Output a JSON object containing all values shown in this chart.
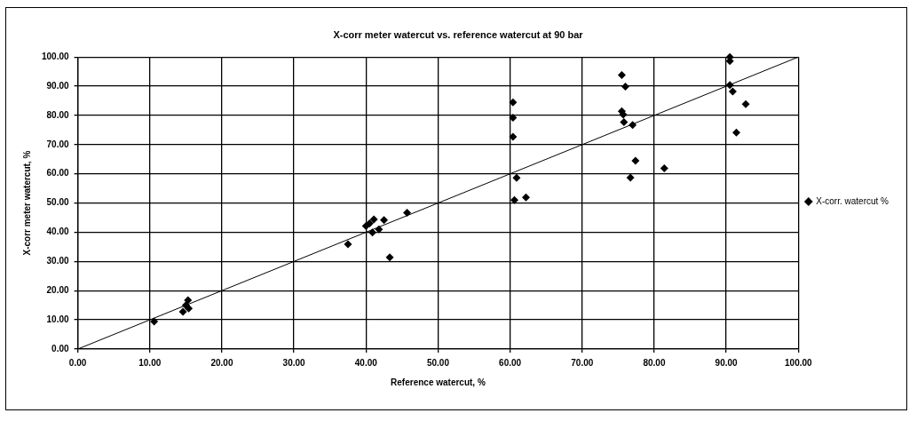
{
  "chart_data": {
    "type": "scatter",
    "title": "X-corr meter watercut vs. reference watercut at 90 bar",
    "xlabel": "Reference watercut, %",
    "ylabel": "X-corr meter watercut, %",
    "xlim": [
      0,
      100
    ],
    "ylim": [
      0,
      100
    ],
    "xticks": [
      {
        "value": 0,
        "label": "0.00"
      },
      {
        "value": 10,
        "label": "10.00"
      },
      {
        "value": 20,
        "label": "20.00"
      },
      {
        "value": 30,
        "label": "30.00"
      },
      {
        "value": 40,
        "label": "40.00"
      },
      {
        "value": 50,
        "label": "50.00"
      },
      {
        "value": 60,
        "label": "60.00"
      },
      {
        "value": 70,
        "label": "70.00"
      },
      {
        "value": 80,
        "label": "80.00"
      },
      {
        "value": 90,
        "label": "90.00"
      },
      {
        "value": 100,
        "label": "100.00"
      }
    ],
    "yticks": [
      {
        "value": 0,
        "label": "0.00"
      },
      {
        "value": 10,
        "label": "10.00"
      },
      {
        "value": 20,
        "label": "20.00"
      },
      {
        "value": 30,
        "label": "30.00"
      },
      {
        "value": 40,
        "label": "40.00"
      },
      {
        "value": 50,
        "label": "50.00"
      },
      {
        "value": 60,
        "label": "60.00"
      },
      {
        "value": 70,
        "label": "70.00"
      },
      {
        "value": 80,
        "label": "80.00"
      },
      {
        "value": 90,
        "label": "90.00"
      },
      {
        "value": 100,
        "label": "100.00"
      }
    ],
    "grid": true,
    "legend": "right",
    "marker": "diamond",
    "series": [
      {
        "name": "X-corr. watercut %",
        "color": "#000000",
        "x": [
          10.6,
          14.6,
          15.3,
          15.4,
          15.0,
          37.5,
          40.0,
          41.1,
          40.9,
          41.8,
          42.5,
          43.3,
          45.7,
          40.5,
          60.4,
          60.4,
          60.4,
          60.9,
          60.6,
          62.2,
          75.5,
          76.0,
          75.5,
          75.7,
          75.8,
          77.0,
          77.4,
          76.7,
          81.4,
          90.5,
          90.5,
          90.5,
          90.9,
          92.7,
          91.4
        ],
        "values": [
          9.4,
          12.8,
          16.7,
          13.9,
          15.0,
          35.9,
          42.1,
          44.4,
          39.9,
          41.0,
          44.2,
          31.4,
          46.7,
          43.0,
          84.5,
          79.2,
          72.7,
          58.6,
          51.0,
          51.9,
          93.8,
          89.9,
          81.4,
          80.3,
          77.7,
          76.7,
          64.5,
          58.7,
          61.9,
          100,
          98.6,
          90.4,
          88.2,
          83.9,
          74.1
        ]
      },
      {
        "type": "line",
        "color": "#000000",
        "marker": "none",
        "x": [
          0,
          100
        ],
        "values": [
          0,
          100
        ]
      }
    ]
  }
}
